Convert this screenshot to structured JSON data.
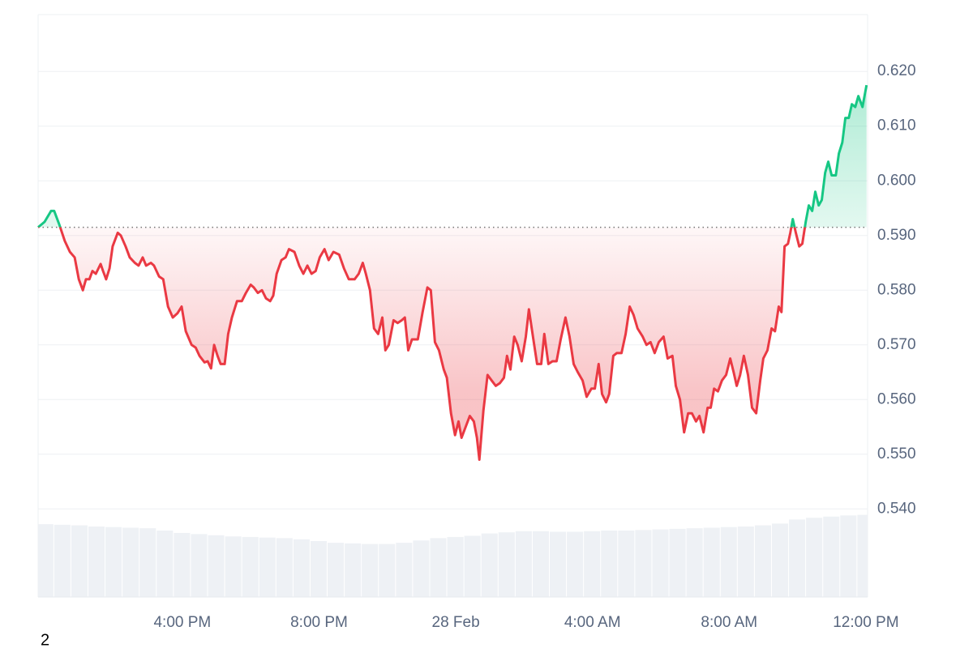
{
  "chart_data": {
    "type": "line",
    "x": [
      11.78,
      11.97,
      12.16,
      12.25,
      12.4,
      12.56,
      12.71,
      12.85,
      12.97,
      13.09,
      13.18,
      13.28,
      13.37,
      13.47,
      13.61,
      13.68,
      13.77,
      13.87,
      13.96,
      14.11,
      14.2,
      14.34,
      14.46,
      14.61,
      14.72,
      14.84,
      14.94,
      15.08,
      15.17,
      15.32,
      15.44,
      15.58,
      15.72,
      15.86,
      15.98,
      16.1,
      16.27,
      16.39,
      16.5,
      16.65,
      16.74,
      16.84,
      16.93,
      17.03,
      17.12,
      17.24,
      17.34,
      17.45,
      17.6,
      17.74,
      17.86,
      18.0,
      18.09,
      18.21,
      18.33,
      18.45,
      18.57,
      18.66,
      18.76,
      18.9,
      19.02,
      19.12,
      19.28,
      19.42,
      19.54,
      19.66,
      19.78,
      19.9,
      20.02,
      20.16,
      20.28,
      20.42,
      20.59,
      20.73,
      20.87,
      21.04,
      21.16,
      21.28,
      21.37,
      21.49,
      21.61,
      21.73,
      21.85,
      21.94,
      22.04,
      22.18,
      22.3,
      22.42,
      22.51,
      22.61,
      22.72,
      22.89,
      23.03,
      23.17,
      23.27,
      23.39,
      23.51,
      23.65,
      23.74,
      23.86,
      23.98,
      24.08,
      24.17,
      24.29,
      24.41,
      24.53,
      24.62,
      24.69,
      24.81,
      24.93,
      25.05,
      25.17,
      25.29,
      25.41,
      25.5,
      25.6,
      25.71,
      25.81,
      25.93,
      26.05,
      26.14,
      26.26,
      26.38,
      26.5,
      26.59,
      26.71,
      26.83,
      26.95,
      27.07,
      27.21,
      27.33,
      27.45,
      27.57,
      27.71,
      27.83,
      27.97,
      28.07,
      28.18,
      28.28,
      28.4,
      28.49,
      28.61,
      28.71,
      28.85,
      28.97,
      29.09,
      29.2,
      29.32,
      29.47,
      29.58,
      29.7,
      29.82,
      29.94,
      30.08,
      30.2,
      30.34,
      30.44,
      30.56,
      30.68,
      30.8,
      30.91,
      31.03,
      31.13,
      31.25,
      31.37,
      31.46,
      31.56,
      31.67,
      31.79,
      31.91,
      32.03,
      32.13,
      32.22,
      32.32,
      32.43,
      32.55,
      32.67,
      32.79,
      32.91,
      33.0,
      33.12,
      33.24,
      33.34,
      33.45,
      33.53,
      33.62,
      33.72,
      33.79,
      33.86,
      33.95,
      34.05,
      34.14,
      34.24,
      34.33,
      34.43,
      34.52,
      34.62,
      34.71,
      34.81,
      34.9,
      35.0,
      35.12,
      35.21,
      35.31,
      35.4,
      35.5,
      35.59,
      35.69,
      35.78,
      35.9,
      36.02
    ],
    "values": [
      0.5915,
      0.5925,
      0.5945,
      0.5945,
      0.592,
      0.589,
      0.587,
      0.586,
      0.582,
      0.58,
      0.582,
      0.582,
      0.5835,
      0.583,
      0.5848,
      0.5835,
      0.582,
      0.584,
      0.588,
      0.5905,
      0.59,
      0.588,
      0.586,
      0.585,
      0.5845,
      0.586,
      0.5845,
      0.585,
      0.5845,
      0.5825,
      0.582,
      0.577,
      0.575,
      0.5758,
      0.577,
      0.5725,
      0.57,
      0.5695,
      0.568,
      0.5668,
      0.567,
      0.5657,
      0.57,
      0.568,
      0.5665,
      0.5665,
      0.572,
      0.575,
      0.578,
      0.578,
      0.5795,
      0.581,
      0.5805,
      0.5795,
      0.58,
      0.5785,
      0.578,
      0.579,
      0.583,
      0.5855,
      0.586,
      0.5875,
      0.587,
      0.5845,
      0.583,
      0.5845,
      0.583,
      0.5835,
      0.586,
      0.5875,
      0.5855,
      0.587,
      0.5865,
      0.584,
      0.582,
      0.582,
      0.583,
      0.585,
      0.583,
      0.58,
      0.573,
      0.572,
      0.575,
      0.569,
      0.57,
      0.5745,
      0.574,
      0.5745,
      0.575,
      0.569,
      0.571,
      0.571,
      0.576,
      0.5805,
      0.58,
      0.5705,
      0.569,
      0.5655,
      0.564,
      0.5575,
      0.5535,
      0.556,
      0.553,
      0.555,
      0.557,
      0.556,
      0.553,
      0.549,
      0.558,
      0.5645,
      0.5635,
      0.5625,
      0.563,
      0.564,
      0.568,
      0.5655,
      0.5715,
      0.57,
      0.567,
      0.5715,
      0.5765,
      0.5715,
      0.5665,
      0.5665,
      0.572,
      0.5665,
      0.567,
      0.567,
      0.571,
      0.575,
      0.5715,
      0.5665,
      0.565,
      0.5635,
      0.5605,
      0.562,
      0.562,
      0.5665,
      0.561,
      0.5595,
      0.561,
      0.568,
      0.5685,
      0.5685,
      0.572,
      0.577,
      0.5755,
      0.573,
      0.5715,
      0.57,
      0.5705,
      0.5685,
      0.5705,
      0.5715,
      0.5675,
      0.568,
      0.5625,
      0.56,
      0.554,
      0.5575,
      0.5575,
      0.556,
      0.557,
      0.554,
      0.5585,
      0.5585,
      0.562,
      0.5615,
      0.5635,
      0.5645,
      0.5675,
      0.565,
      0.5625,
      0.5645,
      0.568,
      0.5645,
      0.5585,
      0.5575,
      0.5635,
      0.5675,
      0.569,
      0.573,
      0.5725,
      0.577,
      0.576,
      0.588,
      0.5885,
      0.5905,
      0.593,
      0.5905,
      0.588,
      0.5885,
      0.5925,
      0.5955,
      0.5945,
      0.598,
      0.5955,
      0.5965,
      0.6015,
      0.6035,
      0.601,
      0.601,
      0.605,
      0.607,
      0.6115,
      0.6115,
      0.614,
      0.6135,
      0.6155,
      0.6135,
      0.6175
    ],
    "baseline": 0.5915,
    "up_color": "#16c784",
    "down_color": "#ea3943",
    "xlim": [
      11.78,
      36.05
    ],
    "xticks": [
      {
        "value": 16,
        "label": "4:00 PM"
      },
      {
        "value": 20,
        "label": "8:00 PM"
      },
      {
        "value": 24,
        "label": "28 Feb"
      },
      {
        "value": 28,
        "label": "4:00 AM"
      },
      {
        "value": 32,
        "label": "8:00 AM"
      },
      {
        "value": 36,
        "label": "12:00 PM"
      }
    ],
    "ylim": [
      0.5239,
      0.6304
    ],
    "yticks": [
      {
        "value": 0.54,
        "label": "0.540"
      },
      {
        "value": 0.55,
        "label": "0.550"
      },
      {
        "value": 0.56,
        "label": "0.560"
      },
      {
        "value": 0.57,
        "label": "0.570"
      },
      {
        "value": 0.58,
        "label": "0.580"
      },
      {
        "value": 0.59,
        "label": "0.590"
      },
      {
        "value": 0.6,
        "label": "0.600"
      },
      {
        "value": 0.61,
        "label": "0.610"
      },
      {
        "value": 0.62,
        "label": "0.620"
      }
    ],
    "grid": true,
    "volume": {
      "axis": "y2",
      "color": "#eef1f5",
      "x": [
        12,
        12.5,
        13,
        13.5,
        14,
        14.5,
        15,
        15.5,
        16,
        16.5,
        17,
        17.5,
        18,
        18.5,
        19,
        19.5,
        20,
        20.5,
        21,
        21.5,
        22,
        22.5,
        23,
        23.5,
        24,
        24.5,
        25,
        25.5,
        26,
        26.5,
        27,
        27.5,
        28,
        28.5,
        29,
        29.5,
        30,
        30.5,
        31,
        31.5,
        32,
        32.5,
        33,
        33.5,
        34,
        34.5,
        35,
        35.5,
        36
      ],
      "values": [
        12.5,
        12.4,
        12.3,
        12.1,
        12.0,
        11.9,
        11.8,
        11.4,
        11.0,
        10.8,
        10.6,
        10.4,
        10.3,
        10.2,
        10.1,
        9.9,
        9.6,
        9.3,
        9.2,
        9.1,
        9.1,
        9.3,
        9.7,
        10.1,
        10.3,
        10.5,
        10.9,
        11.1,
        11.3,
        11.3,
        11.2,
        11.2,
        11.3,
        11.4,
        11.4,
        11.5,
        11.6,
        11.7,
        11.8,
        11.9,
        12.0,
        12.1,
        12.3,
        12.6,
        13.3,
        13.6,
        13.8,
        14.0,
        14.1
      ]
    },
    "y2lim": [
      0,
      100
    ],
    "footnote": "2"
  }
}
